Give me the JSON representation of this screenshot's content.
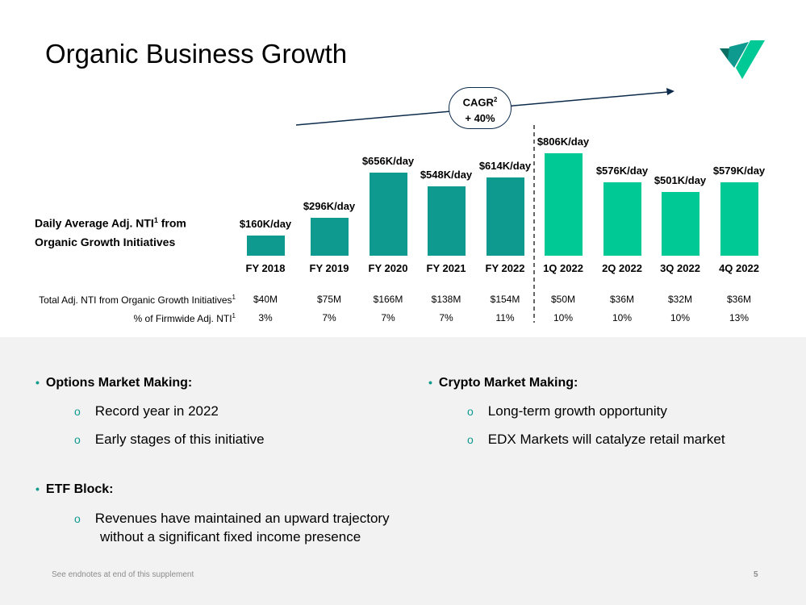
{
  "title": "Organic Business Growth",
  "colors": {
    "annual_bar": "#0e9a8e",
    "quarter_bar": "#00c996",
    "arrow": "#0c2a4a",
    "bullet": "#0e9a8e"
  },
  "logo_icon": "virtu-check-logo",
  "cagr": {
    "label": "CAGR",
    "sup": "2",
    "value": "+ 40%"
  },
  "chart_data": {
    "type": "bar",
    "ylabel_line1": "Daily Average Adj. NTI",
    "ylabel_sup": "1",
    "ylabel_line2": "Organic Growth Initiatives",
    "ylabel_from": " from",
    "categories": [
      "FY 2018",
      "FY 2019",
      "FY 2020",
      "FY 2021",
      "FY 2022",
      "1Q 2022",
      "2Q 2022",
      "3Q 2022",
      "4Q 2022"
    ],
    "values": [
      160,
      296,
      656,
      548,
      614,
      806,
      576,
      501,
      579
    ],
    "unit": "K/day",
    "data_labels": [
      "$160K/day",
      "$296K/day",
      "$656K/day",
      "$548K/day",
      "$614K/day",
      "$806K/day",
      "$576K/day",
      "$501K/day",
      "$579K/day"
    ],
    "grid": false
  },
  "table": {
    "row1_label": "Total Adj. NTI from Organic Growth Initiatives",
    "row1_sup": "1",
    "row1": [
      "$40M",
      "$75M",
      "$166M",
      "$138M",
      "$154M",
      "$50M",
      "$36M",
      "$32M",
      "$36M"
    ],
    "row2_label": "% of Firmwide Adj. NTI",
    "row2_sup": "1",
    "row2": [
      "3%",
      "7%",
      "7%",
      "7%",
      "11%",
      "10%",
      "10%",
      "10%",
      "13%"
    ]
  },
  "bullets": {
    "options": {
      "title": "Options Market Making:",
      "items": [
        "Record year in 2022",
        "Early stages of this initiative"
      ]
    },
    "etf": {
      "title": "ETF Block:",
      "items": [
        "Revenues have maintained an upward trajectory",
        "without a significant fixed income presence"
      ]
    },
    "crypto": {
      "title": "Crypto Market Making:",
      "items": [
        "Long-term growth opportunity",
        "EDX Markets will catalyze retail market"
      ]
    }
  },
  "footer": {
    "note": "See endnotes at end of this supplement",
    "page": "5"
  }
}
